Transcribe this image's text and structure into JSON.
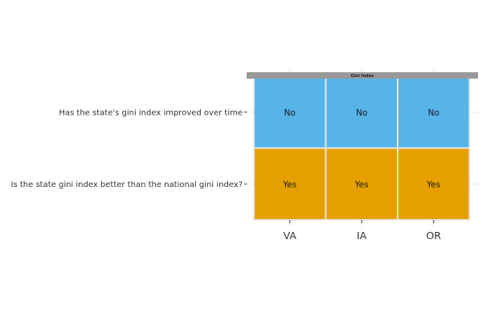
{
  "chart_data": {
    "type": "heatmap",
    "panel_title": "Gini Index",
    "rows": [
      "Has the state's gini index improved over time",
      "Is the state gini index better than the national gini index?"
    ],
    "columns": [
      "VA",
      "IA",
      "OR"
    ],
    "cells": [
      [
        "No",
        "No",
        "No"
      ],
      [
        "Yes",
        "Yes",
        "Yes"
      ]
    ],
    "fill_colors": {
      "No": "#56B4E9",
      "Yes": "#E69F00"
    },
    "strip_color": "#999999",
    "grid": true,
    "legend": "none"
  }
}
